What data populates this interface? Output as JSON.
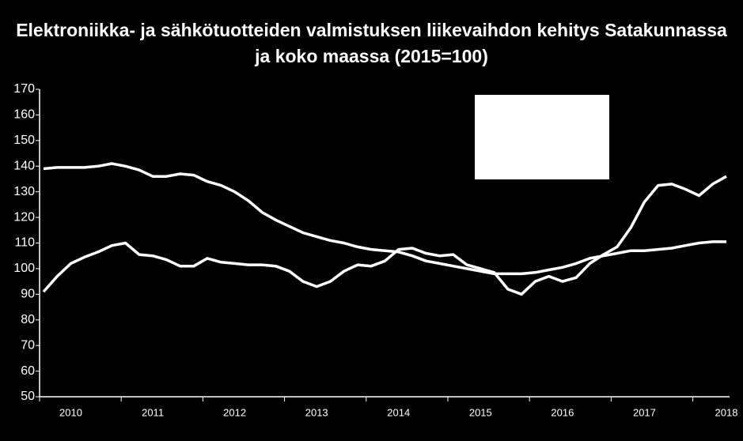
{
  "chart_data": {
    "type": "line",
    "title": "Elektroniikka- ja sähkötuotteiden valmistuksen liikevaihdon kehitys Satakunnassa ja koko maassa (2015=100)",
    "categories": [
      null,
      null,
      "2010",
      null,
      null,
      null,
      null,
      null,
      "2011",
      null,
      null,
      null,
      null,
      null,
      "2012",
      null,
      null,
      null,
      null,
      null,
      "2013",
      null,
      null,
      null,
      null,
      null,
      "2014",
      null,
      null,
      null,
      null,
      null,
      "2015",
      null,
      null,
      null,
      null,
      null,
      "2016",
      null,
      null,
      null,
      null,
      null,
      "2017",
      null,
      null,
      null,
      null,
      null,
      "2018"
    ],
    "series": [
      {
        "color": "#ffffff",
        "values": [
          139,
          139.5,
          139.5,
          139.5,
          140,
          141,
          140,
          138.5,
          136,
          136,
          137,
          136.5,
          134,
          132.5,
          130,
          126.5,
          122,
          119,
          116.5,
          114,
          112.5,
          111,
          110,
          108.5,
          107.5,
          107,
          106.5,
          105,
          103,
          102,
          101,
          100,
          99,
          98,
          98,
          98,
          98.5,
          99.5,
          100.5,
          102,
          104,
          105,
          106,
          107,
          107,
          107.5,
          108,
          109,
          110,
          110.5,
          110.5
        ]
      },
      {
        "color": "#ffffff",
        "values": [
          91,
          97,
          102,
          104.5,
          106.5,
          109,
          110,
          105.5,
          105,
          103.5,
          101,
          101,
          104,
          102.5,
          102,
          101.5,
          101.5,
          101,
          99,
          95,
          93,
          95,
          99,
          101.5,
          101,
          103,
          107.5,
          108,
          106,
          105,
          105.5,
          101.5,
          100,
          98.5,
          92,
          90,
          95,
          97,
          95,
          96.5,
          102,
          105.5,
          108.5,
          116,
          126,
          132.5,
          133,
          131,
          128.5,
          133,
          136
        ]
      }
    ],
    "ylim": [
      50,
      170
    ],
    "yticks": [
      50,
      60,
      70,
      80,
      90,
      100,
      110,
      120,
      130,
      140,
      150,
      160,
      170
    ]
  }
}
